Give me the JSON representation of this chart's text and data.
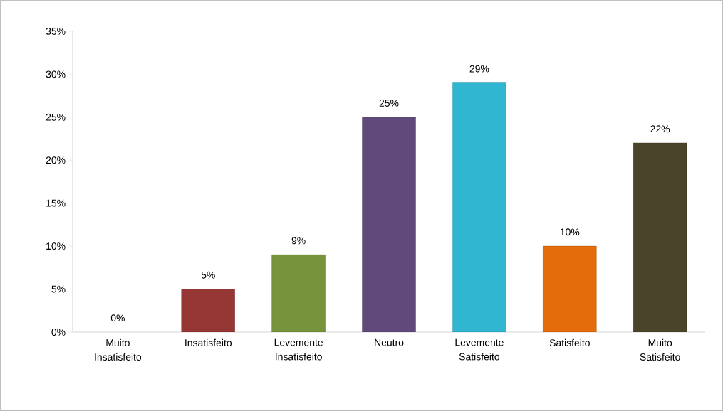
{
  "chart_data": {
    "type": "bar",
    "categories": [
      "Muito Insatisfeito",
      "Insatisfeito",
      "Levemente Insatisfeito",
      "Neutro",
      "Levemente Satisfeito",
      "Satisfeito",
      "Muito Satisfeito"
    ],
    "values": [
      0,
      5,
      9,
      25,
      29,
      10,
      22
    ],
    "colors": [
      null,
      "#953735",
      "#77933c",
      "#604a7b",
      "#31b6d1",
      "#e46c0a",
      "#4a452a"
    ],
    "value_labels": [
      "0%",
      "5%",
      "9%",
      "25%",
      "29%",
      "10%",
      "22%"
    ],
    "ylim": [
      0,
      35
    ],
    "yticks": [
      {
        "value": 0,
        "label": "0%"
      },
      {
        "value": 5,
        "label": "5%"
      },
      {
        "value": 10,
        "label": "10%"
      },
      {
        "value": 15,
        "label": "15%"
      },
      {
        "value": 20,
        "label": "20%"
      },
      {
        "value": 25,
        "label": "25%"
      },
      {
        "value": 30,
        "label": "30%"
      },
      {
        "value": 35,
        "label": "35%"
      }
    ],
    "grid": false
  }
}
